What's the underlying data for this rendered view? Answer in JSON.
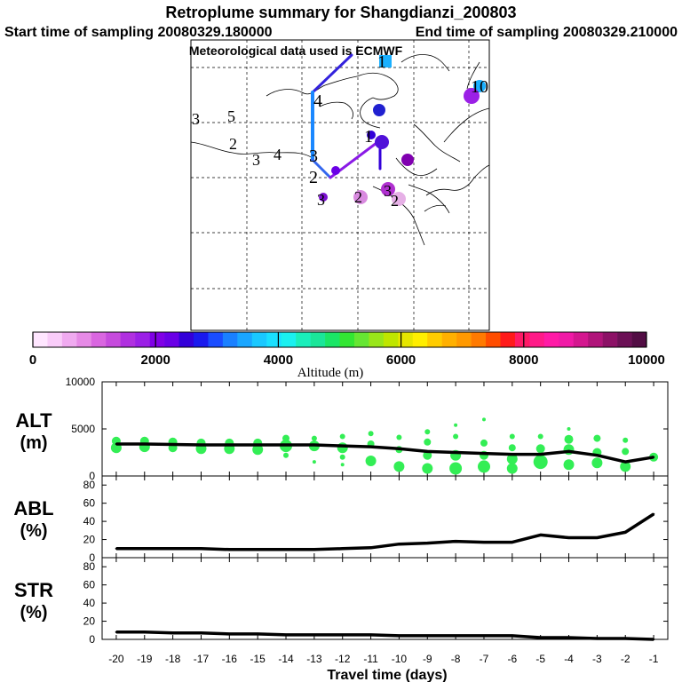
{
  "header": {
    "title": "Retroplume summary for Shangdianzi_200803",
    "start_label": "Start time of sampling 20080329.180000",
    "end_label": "End time of sampling 20080329.210000",
    "met_label": "Meteorological data used is ECMWF"
  },
  "map": {
    "track_labels": [
      {
        "text": "1",
        "color": "#3399ff",
        "alt": 3800
      },
      {
        "text": "10",
        "color": "#1a9fff",
        "alt": 3300
      },
      {
        "text": "4",
        "color": "#000000",
        "alt": 0
      },
      {
        "text": "3",
        "color": "#00d0e0",
        "alt": 4100
      },
      {
        "text": "5",
        "color": "#000000",
        "alt": 0
      },
      {
        "text": "2",
        "color": "#33cccc",
        "alt": 4000
      },
      {
        "text": "3",
        "color": "#2aa5c0",
        "alt": 3500
      },
      {
        "text": "4",
        "color": "#2a90b0",
        "alt": 3400
      },
      {
        "text": "1",
        "color": "#000000",
        "alt": 0
      },
      {
        "text": "3",
        "color": "#000000",
        "alt": 0
      },
      {
        "text": "2",
        "color": "#000000",
        "alt": 0
      },
      {
        "text": "3",
        "color": "#000000",
        "alt": 0
      },
      {
        "text": "2",
        "color": "#cc66cc",
        "alt": 800
      },
      {
        "text": "3",
        "color": "#9a30c0",
        "alt": 1100
      },
      {
        "text": "2",
        "color": "#e0a0e0",
        "alt": 600
      }
    ]
  },
  "colorbar": {
    "label": "Altitude (m)",
    "ticks": [
      "0",
      "2000",
      "4000",
      "6000",
      "8000",
      "10000"
    ],
    "colors": [
      "#ffe6ff",
      "#f9ccf9",
      "#f0aaf0",
      "#e68ae6",
      "#d966e0",
      "#c64bdd",
      "#b030e0",
      "#9b20e6",
      "#8000e6",
      "#6a00e6",
      "#3300d9",
      "#1a1aee",
      "#1a4dff",
      "#1a80ff",
      "#1aa6ff",
      "#1ac8ff",
      "#1ae0ff",
      "#1af0f0",
      "#1aeebb",
      "#1ae699",
      "#1ae666",
      "#33e633",
      "#66e633",
      "#99e61a",
      "#bfe600",
      "#e6e600",
      "#ffee00",
      "#ffcc00",
      "#ffb000",
      "#ff9900",
      "#ff7a00",
      "#ff4d00",
      "#ff1a1a",
      "#ff1a66",
      "#ff1a88",
      "#ff1aa6",
      "#f01aa6",
      "#d4178f",
      "#b0147a",
      "#8c1166",
      "#6b1055",
      "#520d44"
    ]
  },
  "chart_data": [
    {
      "type": "line",
      "panel": "ALT",
      "ylabel": "ALT\n(m)",
      "ylabel_line1": "ALT",
      "ylabel_line2": "(m)",
      "ylim": [
        0,
        10000
      ],
      "yticks": [
        "0",
        "5000",
        "10000"
      ],
      "x": [
        -20,
        -19,
        -18,
        -17,
        -16,
        -15,
        -14,
        -13,
        -12,
        -11,
        -10,
        -9,
        -8,
        -7,
        -6,
        -5,
        -4,
        -3,
        -2,
        -1
      ],
      "values": [
        3400,
        3400,
        3350,
        3300,
        3300,
        3300,
        3300,
        3300,
        3200,
        3100,
        2900,
        2600,
        2500,
        2400,
        2300,
        2300,
        2600,
        2200,
        1500,
        2000
      ],
      "scatter": [
        {
          "x": -20,
          "y": 3000,
          "s": 6
        },
        {
          "x": -20,
          "y": 3700,
          "s": 5
        },
        {
          "x": -19,
          "y": 3100,
          "s": 6
        },
        {
          "x": -19,
          "y": 3700,
          "s": 5
        },
        {
          "x": -18,
          "y": 3000,
          "s": 5
        },
        {
          "x": -18,
          "y": 3600,
          "s": 5
        },
        {
          "x": -17,
          "y": 2900,
          "s": 6
        },
        {
          "x": -17,
          "y": 3500,
          "s": 5
        },
        {
          "x": -16,
          "y": 2900,
          "s": 6
        },
        {
          "x": -16,
          "y": 3500,
          "s": 5
        },
        {
          "x": -15,
          "y": 2800,
          "s": 6
        },
        {
          "x": -15,
          "y": 3500,
          "s": 5
        },
        {
          "x": -14,
          "y": 3200,
          "s": 7
        },
        {
          "x": -14,
          "y": 4000,
          "s": 4
        },
        {
          "x": -14,
          "y": 2200,
          "s": 3
        },
        {
          "x": -13,
          "y": 3200,
          "s": 6
        },
        {
          "x": -13,
          "y": 4000,
          "s": 3
        },
        {
          "x": -13,
          "y": 1500,
          "s": 2
        },
        {
          "x": -12,
          "y": 3000,
          "s": 6
        },
        {
          "x": -12,
          "y": 4200,
          "s": 3
        },
        {
          "x": -12,
          "y": 2000,
          "s": 3
        },
        {
          "x": -12,
          "y": 1200,
          "s": 2
        },
        {
          "x": -11,
          "y": 4500,
          "s": 3
        },
        {
          "x": -11,
          "y": 3400,
          "s": 4
        },
        {
          "x": -11,
          "y": 1600,
          "s": 6
        },
        {
          "x": -10,
          "y": 4100,
          "s": 3
        },
        {
          "x": -10,
          "y": 2800,
          "s": 4
        },
        {
          "x": -10,
          "y": 1000,
          "s": 6
        },
        {
          "x": -9,
          "y": 4700,
          "s": 3
        },
        {
          "x": -9,
          "y": 3600,
          "s": 4
        },
        {
          "x": -9,
          "y": 2200,
          "s": 5
        },
        {
          "x": -9,
          "y": 800,
          "s": 6
        },
        {
          "x": -8,
          "y": 5400,
          "s": 2
        },
        {
          "x": -8,
          "y": 4200,
          "s": 3
        },
        {
          "x": -8,
          "y": 2200,
          "s": 6
        },
        {
          "x": -8,
          "y": 800,
          "s": 7
        },
        {
          "x": -7,
          "y": 6000,
          "s": 2
        },
        {
          "x": -7,
          "y": 3500,
          "s": 4
        },
        {
          "x": -7,
          "y": 2200,
          "s": 5
        },
        {
          "x": -7,
          "y": 1000,
          "s": 7
        },
        {
          "x": -6,
          "y": 4200,
          "s": 3
        },
        {
          "x": -6,
          "y": 3000,
          "s": 4
        },
        {
          "x": -6,
          "y": 1800,
          "s": 6
        },
        {
          "x": -6,
          "y": 800,
          "s": 6
        },
        {
          "x": -5,
          "y": 4200,
          "s": 3
        },
        {
          "x": -5,
          "y": 2900,
          "s": 5
        },
        {
          "x": -5,
          "y": 1500,
          "s": 8
        },
        {
          "x": -4,
          "y": 5000,
          "s": 2
        },
        {
          "x": -4,
          "y": 3900,
          "s": 5
        },
        {
          "x": -4,
          "y": 2800,
          "s": 6
        },
        {
          "x": -4,
          "y": 1200,
          "s": 6
        },
        {
          "x": -3,
          "y": 4000,
          "s": 4
        },
        {
          "x": -3,
          "y": 2500,
          "s": 5
        },
        {
          "x": -3,
          "y": 1400,
          "s": 6
        },
        {
          "x": -2,
          "y": 3800,
          "s": 3
        },
        {
          "x": -2,
          "y": 2600,
          "s": 4
        },
        {
          "x": -2,
          "y": 1000,
          "s": 6
        },
        {
          "x": -1,
          "y": 2000,
          "s": 5
        }
      ]
    },
    {
      "type": "line",
      "panel": "ABL",
      "ylabel": "ABL\n(%)",
      "ylabel_line1": "ABL",
      "ylabel_line2": "(%)",
      "ylim": [
        0,
        90
      ],
      "yticks": [
        "0",
        "20",
        "40",
        "60",
        "80"
      ],
      "x": [
        -20,
        -19,
        -18,
        -17,
        -16,
        -15,
        -14,
        -13,
        -12,
        -11,
        -10,
        -9,
        -8,
        -7,
        -6,
        -5,
        -4,
        -3,
        -2,
        -1
      ],
      "values": [
        10,
        10,
        10,
        10,
        9,
        9,
        9,
        9,
        10,
        11,
        15,
        16,
        18,
        17,
        17,
        25,
        22,
        22,
        28,
        48
      ]
    },
    {
      "type": "line",
      "panel": "STR",
      "ylabel": "STR\n(%)",
      "ylabel_line1": "STR",
      "ylabel_line2": "(%)",
      "ylim": [
        0,
        90
      ],
      "yticks": [
        "0",
        "20",
        "40",
        "60",
        "80"
      ],
      "xlabel": "Travel time (days)",
      "xticks": [
        "-20",
        "-19",
        "-18",
        "-17",
        "-16",
        "-15",
        "-14",
        "-13",
        "-12",
        "-11",
        "-10",
        "-9",
        "-8",
        "-7",
        "-6",
        "-5",
        "-4",
        "-3",
        "-2",
        "-1"
      ],
      "x": [
        -20,
        -19,
        -18,
        -17,
        -16,
        -15,
        -14,
        -13,
        -12,
        -11,
        -10,
        -9,
        -8,
        -7,
        -6,
        -5,
        -4,
        -3,
        -2,
        -1
      ],
      "values": [
        8,
        8,
        7,
        7,
        6,
        6,
        5,
        5,
        5,
        5,
        4,
        4,
        4,
        4,
        4,
        2,
        2,
        1,
        1,
        0
      ]
    }
  ]
}
